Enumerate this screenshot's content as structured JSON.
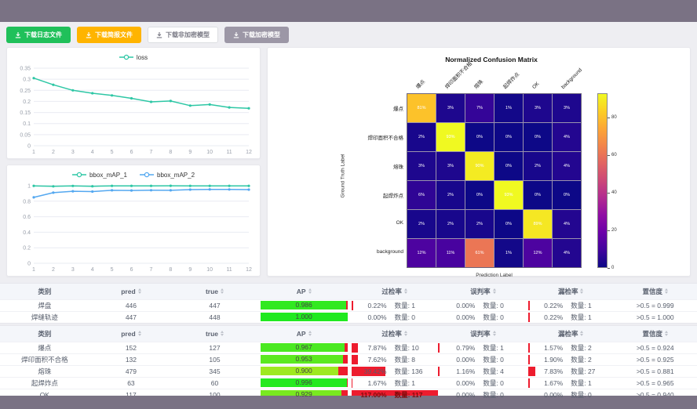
{
  "buttons": [
    {
      "label": "下载日志文件",
      "style": "green"
    },
    {
      "label": "下载简报文件",
      "style": "orange"
    },
    {
      "label": "下载非加密模型",
      "style": "white"
    },
    {
      "label": "下载加密模型",
      "style": "gray"
    }
  ],
  "colors": {
    "accent_teal": "#2ec7a5",
    "accent_blue": "#54a8f0",
    "bar_green_max": "#2fd12f",
    "bar_red": "#ed1c2e",
    "topbar": "#7a7284"
  },
  "count_label": "数量:",
  "chart_data": [
    {
      "type": "line",
      "title": "",
      "xlabel": "",
      "ylabel": "",
      "legend_position": "top",
      "grid": true,
      "x": [
        1,
        2,
        3,
        4,
        5,
        6,
        7,
        8,
        9,
        10,
        11,
        12
      ],
      "ylim": [
        0,
        0.35
      ],
      "yticks": [
        0,
        0.05,
        0.1,
        0.15,
        0.2,
        0.25,
        0.3,
        0.35
      ],
      "series": [
        {
          "name": "loss",
          "color": "#2ec7a5",
          "values": [
            0.305,
            0.275,
            0.25,
            0.237,
            0.227,
            0.214,
            0.198,
            0.202,
            0.181,
            0.186,
            0.173,
            0.169
          ]
        }
      ]
    },
    {
      "type": "line",
      "title": "",
      "xlabel": "",
      "ylabel": "",
      "legend_position": "top",
      "grid": true,
      "x": [
        1,
        2,
        3,
        4,
        5,
        6,
        7,
        8,
        9,
        10,
        11,
        12
      ],
      "ylim": [
        0,
        1
      ],
      "yticks": [
        0,
        0.2,
        0.4,
        0.6,
        0.8,
        1
      ],
      "series": [
        {
          "name": "bbox_mAP_1",
          "color": "#2ec7a5",
          "values": [
            0.998,
            0.992,
            0.997,
            0.993,
            0.998,
            0.998,
            0.998,
            0.999,
            0.998,
            0.998,
            0.998,
            0.998
          ]
        },
        {
          "name": "bbox_mAP_2",
          "color": "#54a8f0",
          "values": [
            0.85,
            0.91,
            0.928,
            0.924,
            0.94,
            0.938,
            0.941,
            0.94,
            0.95,
            0.953,
            0.952,
            0.95
          ]
        }
      ]
    },
    {
      "type": "heatmap",
      "title": "Normalized Confusion Matrix",
      "xlabel": "Prediction Label",
      "ylabel": "Ground Truth Label",
      "labels": [
        "爆点",
        "焊印面积不合格",
        "熔珠",
        "起焊炸点",
        "OK",
        "background"
      ],
      "matrix_percent": [
        [
          81,
          3,
          7,
          1,
          3,
          3
        ],
        [
          2,
          93,
          0,
          0,
          0,
          4
        ],
        [
          3,
          3,
          90,
          0,
          2,
          4
        ],
        [
          6,
          2,
          0,
          93,
          0,
          0
        ],
        [
          2,
          2,
          2,
          0,
          89,
          4
        ],
        [
          12,
          11,
          61,
          1,
          12,
          4
        ]
      ],
      "colormap": "plasma",
      "vmax": 93,
      "colorbar_ticks": [
        0,
        20,
        40,
        60,
        80
      ],
      "legend_position": "right-colorbar"
    }
  ],
  "tables": [
    {
      "headers": [
        {
          "label": "类别",
          "sortable": false
        },
        {
          "label": "pred",
          "sortable": true
        },
        {
          "label": "true",
          "sortable": true
        },
        {
          "label": "AP",
          "sortable": true
        },
        {
          "label": "过检率",
          "sortable": true
        },
        {
          "label": "误判率",
          "sortable": true
        },
        {
          "label": "漏检率",
          "sortable": true
        },
        {
          "label": "置信度",
          "sortable": true
        }
      ],
      "rows": [
        {
          "label": "焊盘",
          "pred": 446,
          "true": 447,
          "ap": 0.986,
          "over": {
            "pct": 0.22,
            "count": 1
          },
          "mis": {
            "pct": 0.0,
            "count": 0
          },
          "miss": {
            "pct": 0.22,
            "count": 1
          },
          "conf": ">0.5 = 0.999"
        },
        {
          "label": "焊缝轨迹",
          "pred": 447,
          "true": 448,
          "ap": 1.0,
          "over": {
            "pct": 0.0,
            "count": 0
          },
          "mis": {
            "pct": 0.0,
            "count": 0
          },
          "miss": {
            "pct": 0.22,
            "count": 1
          },
          "conf": ">0.5 = 1.000"
        }
      ]
    },
    {
      "headers": [
        {
          "label": "类别",
          "sortable": false
        },
        {
          "label": "pred",
          "sortable": true
        },
        {
          "label": "true",
          "sortable": true
        },
        {
          "label": "AP",
          "sortable": true
        },
        {
          "label": "过检率",
          "sortable": true
        },
        {
          "label": "误判率",
          "sortable": true
        },
        {
          "label": "漏检率",
          "sortable": true
        },
        {
          "label": "置信度",
          "sortable": true
        }
      ],
      "rows": [
        {
          "label": "爆点",
          "pred": 152,
          "true": 127,
          "ap": 0.967,
          "over": {
            "pct": 7.87,
            "count": 10
          },
          "mis": {
            "pct": 0.79,
            "count": 1
          },
          "miss": {
            "pct": 1.57,
            "count": 2
          },
          "conf": ">0.5 = 0.924"
        },
        {
          "label": "焊印面积不合格",
          "pred": 132,
          "true": 105,
          "ap": 0.953,
          "over": {
            "pct": 7.62,
            "count": 8
          },
          "mis": {
            "pct": 0.0,
            "count": 0
          },
          "miss": {
            "pct": 1.9,
            "count": 2
          },
          "conf": ">0.5 = 0.925"
        },
        {
          "label": "熔珠",
          "pred": 479,
          "true": 345,
          "ap": 0.9,
          "over": {
            "pct": 39.42,
            "count": 136
          },
          "mis": {
            "pct": 1.16,
            "count": 4
          },
          "miss": {
            "pct": 7.83,
            "count": 27
          },
          "conf": ">0.5 = 0.881"
        },
        {
          "label": "起焊炸点",
          "pred": 63,
          "true": 60,
          "ap": 0.996,
          "over": {
            "pct": 1.67,
            "count": 1
          },
          "mis": {
            "pct": 0.0,
            "count": 0
          },
          "miss": {
            "pct": 1.67,
            "count": 1
          },
          "conf": ">0.5 = 0.965"
        },
        {
          "label": "OK",
          "pred": 117,
          "true": 100,
          "ap": 0.929,
          "over": {
            "pct": 117.0,
            "count": 117
          },
          "mis": {
            "pct": 0.0,
            "count": 0
          },
          "miss": {
            "pct": 0.0,
            "count": 0
          },
          "conf": ">0.5 = 0.940"
        }
      ]
    }
  ]
}
